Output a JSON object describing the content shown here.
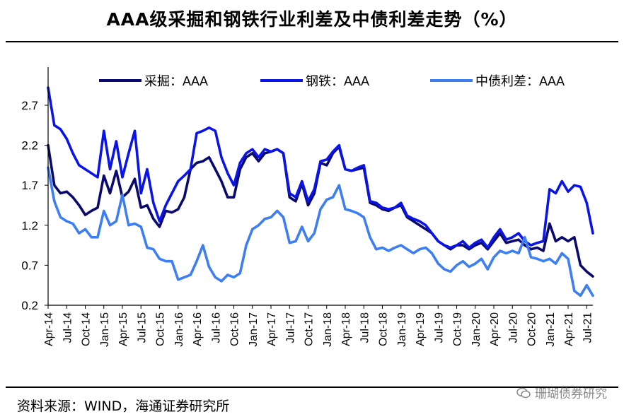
{
  "title": "AAA级采掘和钢铁行业利差及中债利差走势（%）",
  "source": "资料来源：WIND，海通证券研究所",
  "watermark": "珊瑚债券研究",
  "chart_data": {
    "type": "line",
    "title": "AAA级采掘和钢铁行业利差及中债利差走势（%）",
    "xlabel": "",
    "ylabel": "",
    "ylim": [
      0.2,
      3.0
    ],
    "yticks": [
      0.2,
      0.7,
      1.2,
      1.7,
      2.2,
      2.7
    ],
    "x_tick_labels": [
      "Apr-14",
      "Jul-14",
      "Oct-14",
      "Jan-15",
      "Apr-15",
      "Jul-15",
      "Oct-15",
      "Jan-16",
      "Apr-16",
      "Jul-16",
      "Oct-16",
      "Jan-17",
      "Apr-17",
      "Jul-17",
      "Oct-17",
      "Jan-18",
      "Apr-18",
      "Jul-18",
      "Oct-18",
      "Jan-19",
      "Apr-19",
      "Jul-19",
      "Oct-19",
      "Jan-20",
      "Apr-20",
      "Jul-20",
      "Oct-20",
      "Jan-21",
      "Apr-21",
      "Jul-21"
    ],
    "x_start": "Apr-14",
    "x_end": "Aug-21",
    "legend_position": "top",
    "grid": false,
    "series": [
      {
        "name": "采掘：AAA",
        "color": "#0a0a6e",
        "points": [
          [
            "Apr-14",
            2.2
          ],
          [
            "May-14",
            1.7
          ],
          [
            "Jun-14",
            1.6
          ],
          [
            "Jul-14",
            1.62
          ],
          [
            "Aug-14",
            1.55
          ],
          [
            "Sep-14",
            1.45
          ],
          [
            "Oct-14",
            1.33
          ],
          [
            "Nov-14",
            1.38
          ],
          [
            "Dec-14",
            1.42
          ],
          [
            "Jan-15",
            1.82
          ],
          [
            "Feb-15",
            1.6
          ],
          [
            "Mar-15",
            1.88
          ],
          [
            "Apr-15",
            1.55
          ],
          [
            "May-15",
            1.62
          ],
          [
            "Jun-15",
            1.78
          ],
          [
            "Jul-15",
            1.42
          ],
          [
            "Aug-15",
            1.45
          ],
          [
            "Sep-15",
            1.28
          ],
          [
            "Oct-15",
            1.18
          ],
          [
            "Nov-15",
            1.38
          ],
          [
            "Dec-15",
            1.36
          ],
          [
            "Jan-16",
            1.4
          ],
          [
            "Feb-16",
            1.55
          ],
          [
            "Mar-16",
            1.9
          ],
          [
            "Apr-16",
            1.98
          ],
          [
            "May-16",
            2.0
          ],
          [
            "Jun-16",
            2.05
          ],
          [
            "Jul-16",
            1.9
          ],
          [
            "Aug-16",
            1.75
          ],
          [
            "Sep-16",
            1.55
          ],
          [
            "Oct-16",
            1.55
          ],
          [
            "Nov-16",
            1.9
          ],
          [
            "Dec-16",
            2.05
          ],
          [
            "Jan-17",
            2.1
          ],
          [
            "Feb-17",
            2.0
          ],
          [
            "Mar-17",
            2.1
          ],
          [
            "Apr-17",
            2.12
          ],
          [
            "May-17",
            2.15
          ],
          [
            "Jun-17",
            2.1
          ],
          [
            "Jul-17",
            1.55
          ],
          [
            "Aug-17",
            1.5
          ],
          [
            "Sep-17",
            1.72
          ],
          [
            "Oct-17",
            1.45
          ],
          [
            "Nov-17",
            1.6
          ],
          [
            "Dec-17",
            1.98
          ],
          [
            "Jan-18",
            1.95
          ],
          [
            "Feb-18",
            2.1
          ],
          [
            "Mar-18",
            2.18
          ],
          [
            "Apr-18",
            1.9
          ],
          [
            "May-18",
            1.88
          ],
          [
            "Jun-18",
            1.9
          ],
          [
            "Jul-18",
            1.92
          ],
          [
            "Aug-18",
            1.48
          ],
          [
            "Sep-18",
            1.45
          ],
          [
            "Oct-18",
            1.4
          ],
          [
            "Nov-18",
            1.38
          ],
          [
            "Dec-18",
            1.42
          ],
          [
            "Jan-19",
            1.45
          ],
          [
            "Feb-19",
            1.3
          ],
          [
            "Mar-19",
            1.25
          ],
          [
            "Apr-19",
            1.2
          ],
          [
            "May-19",
            1.15
          ],
          [
            "Jun-19",
            1.1
          ],
          [
            "Jul-19",
            1.0
          ],
          [
            "Aug-19",
            0.95
          ],
          [
            "Sep-19",
            0.9
          ],
          [
            "Oct-19",
            0.95
          ],
          [
            "Nov-19",
            0.95
          ],
          [
            "Dec-19",
            0.9
          ],
          [
            "Jan-20",
            0.95
          ],
          [
            "Feb-20",
            0.98
          ],
          [
            "Mar-20",
            0.9
          ],
          [
            "Apr-20",
            1.0
          ],
          [
            "May-20",
            1.1
          ],
          [
            "Jun-20",
            0.98
          ],
          [
            "Jul-20",
            1.0
          ],
          [
            "Aug-20",
            1.02
          ],
          [
            "Sep-20",
            0.95
          ],
          [
            "Oct-20",
            0.9
          ],
          [
            "Nov-20",
            0.92
          ],
          [
            "Dec-20",
            0.88
          ],
          [
            "Jan-21",
            1.22
          ],
          [
            "Feb-21",
            1.0
          ],
          [
            "Mar-21",
            1.05
          ],
          [
            "Apr-21",
            1.0
          ],
          [
            "May-21",
            1.05
          ],
          [
            "Jun-21",
            0.7
          ],
          [
            "Jul-21",
            0.62
          ],
          [
            "Aug-21",
            0.56
          ]
        ]
      },
      {
        "name": "钢铁：AAA",
        "color": "#0a14e6",
        "points": [
          [
            "Apr-14",
            2.92
          ],
          [
            "May-14",
            2.45
          ],
          [
            "Jun-14",
            2.4
          ],
          [
            "Jul-14",
            2.28
          ],
          [
            "Aug-14",
            2.1
          ],
          [
            "Sep-14",
            1.95
          ],
          [
            "Oct-14",
            1.9
          ],
          [
            "Nov-14",
            1.85
          ],
          [
            "Dec-14",
            1.8
          ],
          [
            "Jan-15",
            2.38
          ],
          [
            "Feb-15",
            1.9
          ],
          [
            "Mar-15",
            2.25
          ],
          [
            "Apr-15",
            1.8
          ],
          [
            "May-15",
            2.1
          ],
          [
            "Jun-15",
            2.38
          ],
          [
            "Jul-15",
            1.6
          ],
          [
            "Aug-15",
            1.9
          ],
          [
            "Sep-15",
            1.48
          ],
          [
            "Oct-15",
            1.25
          ],
          [
            "Nov-15",
            1.45
          ],
          [
            "Dec-15",
            1.6
          ],
          [
            "Jan-16",
            1.75
          ],
          [
            "Feb-16",
            1.82
          ],
          [
            "Mar-16",
            1.9
          ],
          [
            "Apr-16",
            2.35
          ],
          [
            "May-16",
            2.38
          ],
          [
            "Jun-16",
            2.42
          ],
          [
            "Jul-16",
            2.38
          ],
          [
            "Aug-16",
            2.05
          ],
          [
            "Sep-16",
            1.85
          ],
          [
            "Oct-16",
            1.7
          ],
          [
            "Nov-16",
            1.98
          ],
          [
            "Dec-16",
            2.1
          ],
          [
            "Jan-17",
            2.15
          ],
          [
            "Feb-17",
            2.05
          ],
          [
            "Mar-17",
            2.15
          ],
          [
            "Apr-17",
            2.12
          ],
          [
            "May-17",
            2.15
          ],
          [
            "Jun-17",
            2.1
          ],
          [
            "Jul-17",
            1.6
          ],
          [
            "Aug-17",
            1.55
          ],
          [
            "Sep-17",
            1.75
          ],
          [
            "Oct-17",
            1.5
          ],
          [
            "Nov-17",
            1.65
          ],
          [
            "Dec-17",
            2.0
          ],
          [
            "Jan-18",
            2.02
          ],
          [
            "Feb-18",
            2.12
          ],
          [
            "Mar-18",
            2.2
          ],
          [
            "Apr-18",
            1.9
          ],
          [
            "May-18",
            1.88
          ],
          [
            "Jun-18",
            1.92
          ],
          [
            "Jul-18",
            1.95
          ],
          [
            "Aug-18",
            1.5
          ],
          [
            "Sep-18",
            1.48
          ],
          [
            "Oct-18",
            1.42
          ],
          [
            "Nov-18",
            1.4
          ],
          [
            "Dec-18",
            1.42
          ],
          [
            "Jan-19",
            1.48
          ],
          [
            "Feb-19",
            1.32
          ],
          [
            "Mar-19",
            1.28
          ],
          [
            "Apr-19",
            1.25
          ],
          [
            "May-19",
            1.2
          ],
          [
            "Jun-19",
            1.1
          ],
          [
            "Jul-19",
            1.0
          ],
          [
            "Aug-19",
            0.95
          ],
          [
            "Sep-19",
            0.92
          ],
          [
            "Oct-19",
            0.95
          ],
          [
            "Nov-19",
            1.0
          ],
          [
            "Dec-19",
            0.92
          ],
          [
            "Jan-20",
            0.98
          ],
          [
            "Feb-20",
            1.02
          ],
          [
            "Mar-20",
            0.92
          ],
          [
            "Apr-20",
            1.05
          ],
          [
            "May-20",
            1.15
          ],
          [
            "Jun-20",
            1.02
          ],
          [
            "Jul-20",
            1.05
          ],
          [
            "Aug-20",
            1.1
          ],
          [
            "Sep-20",
            1.0
          ],
          [
            "Oct-20",
            0.95
          ],
          [
            "Nov-20",
            0.98
          ],
          [
            "Dec-20",
            1.0
          ],
          [
            "Jan-21",
            1.65
          ],
          [
            "Feb-21",
            1.6
          ],
          [
            "Mar-21",
            1.75
          ],
          [
            "Apr-21",
            1.62
          ],
          [
            "May-21",
            1.7
          ],
          [
            "Jun-21",
            1.68
          ],
          [
            "Jul-21",
            1.48
          ],
          [
            "Aug-21",
            1.1
          ]
        ]
      },
      {
        "name": "中债利差：AAA",
        "color": "#3d7ef2",
        "points": [
          [
            "Apr-14",
            1.92
          ],
          [
            "May-14",
            1.5
          ],
          [
            "Jun-14",
            1.3
          ],
          [
            "Jul-14",
            1.25
          ],
          [
            "Aug-14",
            1.22
          ],
          [
            "Sep-14",
            1.1
          ],
          [
            "Oct-14",
            1.15
          ],
          [
            "Nov-14",
            1.05
          ],
          [
            "Dec-14",
            1.05
          ],
          [
            "Jan-15",
            1.38
          ],
          [
            "Feb-15",
            1.2
          ],
          [
            "Mar-15",
            1.25
          ],
          [
            "Apr-15",
            1.58
          ],
          [
            "May-15",
            1.2
          ],
          [
            "Jun-15",
            1.22
          ],
          [
            "Jul-15",
            1.18
          ],
          [
            "Aug-15",
            0.92
          ],
          [
            "Sep-15",
            0.9
          ],
          [
            "Oct-15",
            0.78
          ],
          [
            "Nov-15",
            0.75
          ],
          [
            "Dec-15",
            0.75
          ],
          [
            "Jan-16",
            0.52
          ],
          [
            "Feb-16",
            0.55
          ],
          [
            "Mar-16",
            0.58
          ],
          [
            "Apr-16",
            0.75
          ],
          [
            "May-16",
            0.95
          ],
          [
            "Jun-16",
            0.68
          ],
          [
            "Jul-16",
            0.55
          ],
          [
            "Aug-16",
            0.5
          ],
          [
            "Sep-16",
            0.58
          ],
          [
            "Oct-16",
            0.55
          ],
          [
            "Nov-16",
            0.6
          ],
          [
            "Dec-16",
            0.95
          ],
          [
            "Jan-17",
            1.15
          ],
          [
            "Feb-17",
            1.2
          ],
          [
            "Mar-17",
            1.28
          ],
          [
            "Apr-17",
            1.3
          ],
          [
            "May-17",
            1.38
          ],
          [
            "Jun-17",
            1.3
          ],
          [
            "Jul-17",
            0.98
          ],
          [
            "Aug-17",
            1.0
          ],
          [
            "Sep-17",
            1.18
          ],
          [
            "Oct-17",
            1.0
          ],
          [
            "Nov-17",
            1.1
          ],
          [
            "Dec-17",
            1.4
          ],
          [
            "Jan-18",
            1.52
          ],
          [
            "Feb-18",
            1.55
          ],
          [
            "Mar-18",
            1.7
          ],
          [
            "Apr-18",
            1.4
          ],
          [
            "May-18",
            1.38
          ],
          [
            "Jun-18",
            1.35
          ],
          [
            "Jul-18",
            1.3
          ],
          [
            "Aug-18",
            1.05
          ],
          [
            "Sep-18",
            0.9
          ],
          [
            "Oct-18",
            0.92
          ],
          [
            "Nov-18",
            0.88
          ],
          [
            "Dec-18",
            0.92
          ],
          [
            "Jan-19",
            0.95
          ],
          [
            "Feb-19",
            0.9
          ],
          [
            "Mar-19",
            0.85
          ],
          [
            "Apr-19",
            0.9
          ],
          [
            "May-19",
            0.92
          ],
          [
            "Jun-19",
            0.85
          ],
          [
            "Jul-19",
            0.72
          ],
          [
            "Aug-19",
            0.65
          ],
          [
            "Sep-19",
            0.62
          ],
          [
            "Oct-19",
            0.7
          ],
          [
            "Nov-19",
            0.75
          ],
          [
            "Dec-19",
            0.68
          ],
          [
            "Jan-20",
            0.72
          ],
          [
            "Feb-20",
            0.78
          ],
          [
            "Mar-20",
            0.65
          ],
          [
            "Apr-20",
            0.8
          ],
          [
            "May-20",
            0.88
          ],
          [
            "Jun-20",
            0.85
          ],
          [
            "Jul-20",
            0.88
          ],
          [
            "Aug-20",
            0.85
          ],
          [
            "Sep-20",
            1.05
          ],
          [
            "Oct-20",
            0.8
          ],
          [
            "Nov-20",
            0.78
          ],
          [
            "Dec-20",
            0.75
          ],
          [
            "Jan-21",
            0.78
          ],
          [
            "Feb-21",
            0.72
          ],
          [
            "Mar-21",
            0.85
          ],
          [
            "Apr-21",
            0.78
          ],
          [
            "May-21",
            0.38
          ],
          [
            "Jun-21",
            0.32
          ],
          [
            "Jul-21",
            0.45
          ],
          [
            "Aug-21",
            0.32
          ]
        ]
      }
    ]
  }
}
